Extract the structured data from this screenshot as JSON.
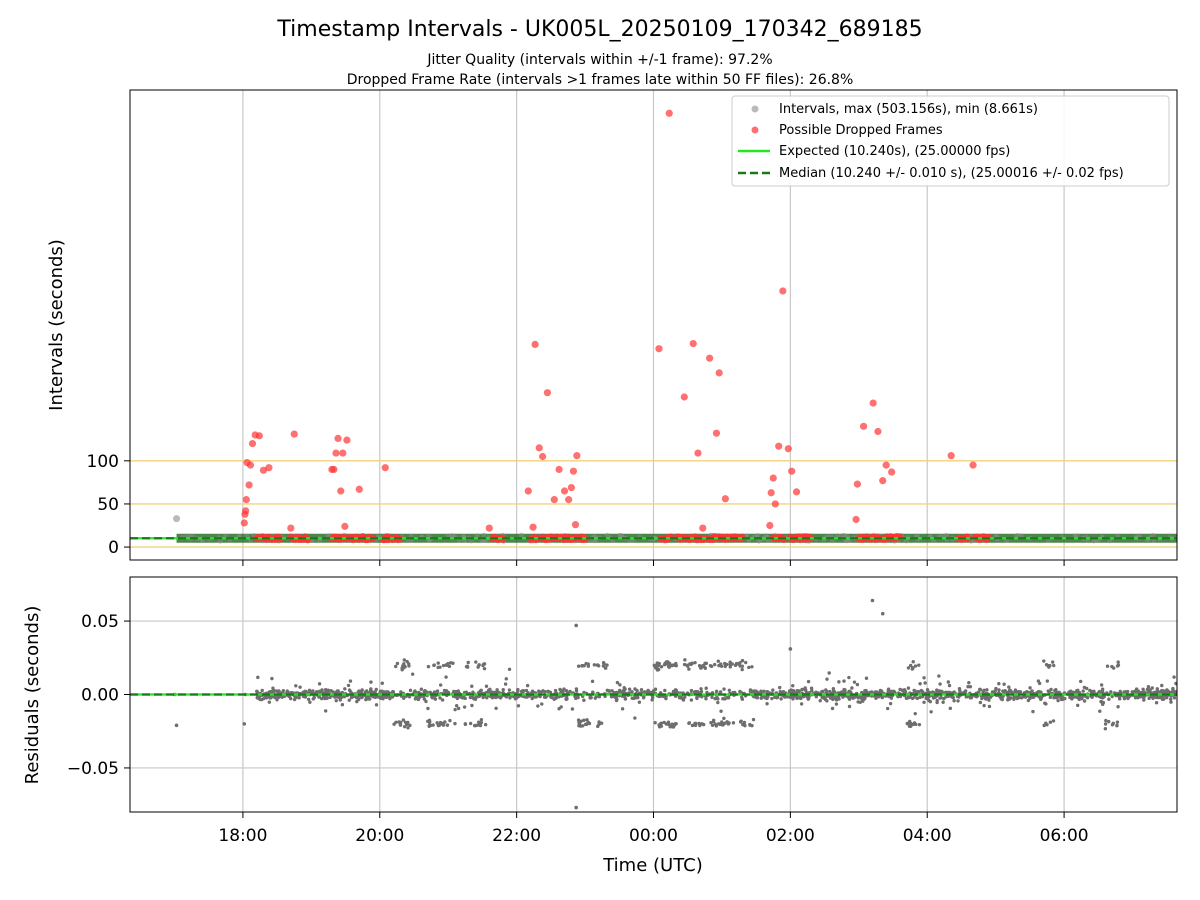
{
  "figure": {
    "title": "Timestamp Intervals - UK005L_20250109_170342_689185",
    "subtitle_1": "Jitter Quality (intervals within +/-1 frame): 97.2%",
    "subtitle_2": "Dropped Frame Rate (intervals >1 frames late within 50 FF files): 26.8%",
    "xlabel": "Time (UTC)"
  },
  "colors": {
    "intervals": "#8c8c8c",
    "dropped": "#ff3333",
    "expected": "#22e822",
    "median": "#1a7a1a",
    "refline": "#f5d27a",
    "grid": "#c8c8c8",
    "residual": "#6e6e6e",
    "band": "#2f6e2f"
  },
  "chart_data": [
    {
      "panel": "top",
      "type": "scatter",
      "ylabel": "Intervals (seconds)",
      "x_is_hours_since_midnight_jan9": true,
      "xlim": [
        16.35,
        31.65
      ],
      "xticks": [
        18,
        20,
        22,
        24,
        26,
        28,
        30
      ],
      "xtick_labels": [
        "18:00",
        "20:00",
        "22:00",
        "00:00",
        "02:00",
        "04:00",
        "06:00"
      ],
      "ylim": [
        -15,
        530
      ],
      "yticks": [
        0,
        50,
        100
      ],
      "ytick_labels": [
        "0",
        "50",
        "100"
      ],
      "hlines": [
        0,
        50,
        100
      ],
      "grid": "x-only",
      "legend_position": "top-right",
      "legend": [
        {
          "label": "Intervals, max (503.156s), min (8.661s)",
          "marker": "dot",
          "color_key": "intervals"
        },
        {
          "label": "Possible Dropped Frames",
          "marker": "dot",
          "color_key": "dropped"
        },
        {
          "label": "Expected (10.240s), (25.00000 fps)",
          "marker": "line",
          "color_key": "expected"
        },
        {
          "label": "Median (10.240 +/- 0.010 s), (25.00016 +/- 0.02 fps)",
          "marker": "dashed",
          "color_key": "median"
        }
      ],
      "expected_interval": 10.24,
      "median_interval": 10.24,
      "interval_band_x": [
        17.03,
        31.65
      ],
      "intervals_outliers": [
        [
          17.03,
          33
        ]
      ],
      "dropped_clusters": [
        [
          18.2,
          18.55
        ],
        [
          18.7,
          18.95
        ],
        [
          19.3,
          19.9
        ],
        [
          20.05,
          20.3
        ],
        [
          21.65,
          21.8
        ],
        [
          22.2,
          22.3
        ],
        [
          22.35,
          23.0
        ],
        [
          24.1,
          24.25
        ],
        [
          24.35,
          24.75
        ],
        [
          24.8,
          25.3
        ],
        [
          25.75,
          25.9
        ],
        [
          26.0,
          26.3
        ],
        [
          27.0,
          27.6
        ],
        [
          28.45,
          28.6
        ],
        [
          28.7,
          28.9
        ]
      ],
      "dropped": [
        [
          18.02,
          28
        ],
        [
          18.03,
          38
        ],
        [
          18.04,
          42
        ],
        [
          18.05,
          55
        ],
        [
          18.06,
          98
        ],
        [
          18.09,
          72
        ],
        [
          18.11,
          95
        ],
        [
          18.14,
          120
        ],
        [
          18.18,
          130
        ],
        [
          18.24,
          129
        ],
        [
          18.3,
          89
        ],
        [
          18.38,
          92
        ],
        [
          18.7,
          22
        ],
        [
          18.75,
          131
        ],
        [
          19.3,
          90
        ],
        [
          19.33,
          90
        ],
        [
          19.36,
          109
        ],
        [
          19.39,
          126
        ],
        [
          19.43,
          65
        ],
        [
          19.46,
          109
        ],
        [
          19.49,
          24
        ],
        [
          19.52,
          124
        ],
        [
          19.7,
          67
        ],
        [
          20.08,
          92
        ],
        [
          21.6,
          22
        ],
        [
          22.17,
          65
        ],
        [
          22.24,
          23
        ],
        [
          22.27,
          235
        ],
        [
          22.33,
          115
        ],
        [
          22.38,
          105
        ],
        [
          22.45,
          179
        ],
        [
          22.55,
          55
        ],
        [
          22.62,
          90
        ],
        [
          22.7,
          65
        ],
        [
          22.76,
          55
        ],
        [
          22.8,
          69
        ],
        [
          22.83,
          88
        ],
        [
          22.86,
          26
        ],
        [
          22.88,
          106
        ],
        [
          24.08,
          230
        ],
        [
          24.23,
          503
        ],
        [
          24.45,
          174
        ],
        [
          24.58,
          236
        ],
        [
          24.65,
          109
        ],
        [
          24.72,
          22
        ],
        [
          24.82,
          219
        ],
        [
          24.92,
          132
        ],
        [
          24.96,
          202
        ],
        [
          25.05,
          56
        ],
        [
          25.7,
          25
        ],
        [
          25.72,
          63
        ],
        [
          25.75,
          80
        ],
        [
          25.78,
          50
        ],
        [
          25.83,
          117
        ],
        [
          25.89,
          297
        ],
        [
          25.97,
          114
        ],
        [
          26.02,
          88
        ],
        [
          26.09,
          64
        ],
        [
          26.96,
          32
        ],
        [
          26.98,
          73
        ],
        [
          27.07,
          140
        ],
        [
          27.21,
          167
        ],
        [
          27.28,
          134
        ],
        [
          27.35,
          77
        ],
        [
          27.4,
          95
        ],
        [
          27.48,
          87
        ],
        [
          28.35,
          106
        ],
        [
          28.67,
          95
        ]
      ]
    },
    {
      "panel": "bottom",
      "type": "scatter",
      "ylabel": "Residuals (seconds)",
      "xlabel": "Time (UTC)",
      "xlim": [
        16.35,
        31.65
      ],
      "ylim": [
        -0.08,
        0.08
      ],
      "yticks": [
        -0.05,
        0.0,
        0.05
      ],
      "ytick_labels": [
        "−0.05",
        "0.00",
        "0.05"
      ],
      "grid": "both",
      "expected_residual": 0.0,
      "median_residual": 0.0,
      "series": [
        {
          "name": "residual_scatter",
          "x_range": [
            18.2,
            31.65
          ],
          "core_spread": 0.006,
          "occasional_spread": 0.02
        },
        {
          "name": "sparse_leading",
          "points": [
            [
              17.0,
              0.0
            ],
            [
              17.03,
              -0.021
            ],
            [
              18.02,
              -0.02
            ],
            [
              18.04,
              0.0
            ]
          ]
        },
        {
          "name": "visible_outliers",
          "points": [
            [
              22.87,
              0.047
            ],
            [
              22.87,
              -0.077
            ],
            [
              26.0,
              0.031
            ],
            [
              27.2,
              0.064
            ],
            [
              27.35,
              0.055
            ],
            [
              23.3,
              0.018
            ],
            [
              25.3,
              0.023
            ]
          ]
        }
      ],
      "bimodal_regions": [
        [
          20.2,
          20.45
        ],
        [
          20.7,
          21.1
        ],
        [
          21.25,
          21.55
        ],
        [
          22.9,
          23.35
        ],
        [
          24.0,
          24.35
        ],
        [
          24.4,
          24.75
        ],
        [
          24.75,
          25.0
        ],
        [
          25.0,
          25.45
        ],
        [
          27.7,
          27.9
        ],
        [
          29.7,
          29.85
        ],
        [
          30.6,
          30.8
        ]
      ],
      "bimodal_levels": [
        0.02,
        -0.02
      ]
    }
  ]
}
